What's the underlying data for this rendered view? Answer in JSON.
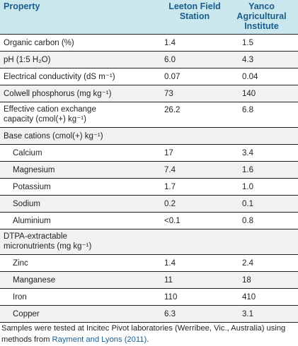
{
  "table": {
    "headers": {
      "property": "Property",
      "leeton": "Leeton Field\nStation",
      "yanco": "Yanco Agricultural\nInstitute"
    },
    "rows": [
      {
        "label": "Organic carbon (%)",
        "leeton": "1.4",
        "yanco": "1.5",
        "indent": false,
        "tall": false
      },
      {
        "label": "pH (1:5 H₂O)",
        "leeton": "6.0",
        "yanco": "4.3",
        "indent": false,
        "tall": false
      },
      {
        "label": "Electrical conductivity (dS m⁻¹)",
        "leeton": "0.07",
        "yanco": "0.04",
        "indent": false,
        "tall": false
      },
      {
        "label": "Colwell phosphorus (mg kg⁻¹)",
        "leeton": "73",
        "yanco": "140",
        "indent": false,
        "tall": false
      },
      {
        "label": "Effective cation exchange capacity (cmol(+) kg⁻¹)",
        "leeton": "26.2",
        "yanco": "6.8",
        "indent": false,
        "tall": true
      },
      {
        "label": "Base cations (cmol(+) kg⁻¹)",
        "leeton": "",
        "yanco": "",
        "indent": false,
        "tall": false
      },
      {
        "label": "Calcium",
        "leeton": "17",
        "yanco": "3.4",
        "indent": true,
        "tall": false
      },
      {
        "label": "Magnesium",
        "leeton": "7.4",
        "yanco": "1.6",
        "indent": true,
        "tall": false
      },
      {
        "label": "Potassium",
        "leeton": "1.7",
        "yanco": "1.0",
        "indent": true,
        "tall": false
      },
      {
        "label": "Sodium",
        "leeton": "0.2",
        "yanco": "0.1",
        "indent": true,
        "tall": false
      },
      {
        "label": "Aluminium",
        "leeton": "<0.1",
        "yanco": "0.8",
        "indent": true,
        "tall": false
      },
      {
        "label": "DTPA-extractable micronutrients (mg kg⁻¹)",
        "leeton": "",
        "yanco": "",
        "indent": false,
        "tall": true
      },
      {
        "label": "Zinc",
        "leeton": "1.4",
        "yanco": "2.4",
        "indent": true,
        "tall": false
      },
      {
        "label": "Manganese",
        "leeton": "11",
        "yanco": "18",
        "indent": true,
        "tall": false
      },
      {
        "label": "Iron",
        "leeton": "110",
        "yanco": "410",
        "indent": true,
        "tall": false
      },
      {
        "label": "Copper",
        "leeton": "6.3",
        "yanco": "3.1",
        "indent": true,
        "tall": false
      }
    ]
  },
  "footnote": {
    "text": "Samples were tested at Incitec Pivot laboratories (Werribee, Vic., Australia) using methods from ",
    "link": "Rayment and Lyons (2011)",
    "end": "."
  },
  "colors": {
    "header_bg": "#c9e7ec",
    "header_text": "#1a5c8c",
    "row_alt_bg": "#f2f1ef",
    "link": "#1a5c8c"
  }
}
